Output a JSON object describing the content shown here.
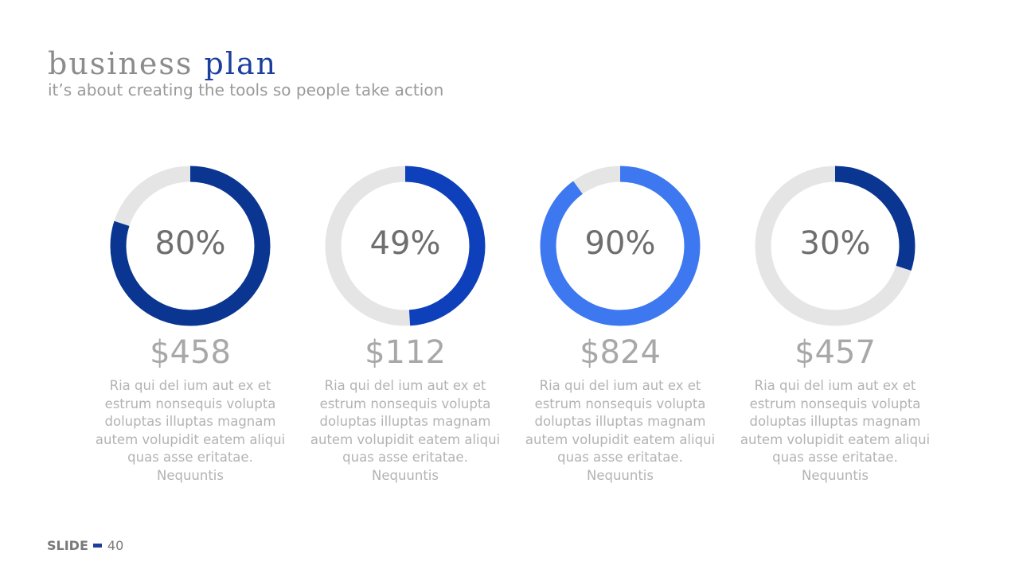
{
  "header": {
    "title_part1": "business",
    "title_part2": "plan",
    "subtitle": "it’s about creating the tools so people take action"
  },
  "colors": {
    "track": "#e5e5e5",
    "series": [
      "#0a3591",
      "#0f40bb",
      "#3d78f0",
      "#0a3591"
    ]
  },
  "chart_data": {
    "type": "pie",
    "donut": true,
    "items": [
      {
        "value": 80,
        "label": "80%",
        "amount": "$458",
        "description": "Ria qui del ium aut ex et estrum nonsequis volupta doluptas illuptas magnam autem volupidit eatem aliqui quas asse eritatae. Nequuntis"
      },
      {
        "value": 49,
        "label": "49%",
        "amount": "$112",
        "description": "Ria qui del ium aut ex et estrum nonsequis volupta doluptas illuptas magnam autem volupidit eatem aliqui quas asse eritatae. Nequuntis"
      },
      {
        "value": 90,
        "label": "90%",
        "amount": "$824",
        "description": "Ria qui del ium aut ex et estrum nonsequis volupta doluptas illuptas magnam autem volupidit eatem aliqui quas asse eritatae. Nequuntis"
      },
      {
        "value": 30,
        "label": "30%",
        "amount": "$457",
        "description": "Ria qui del ium aut ex et estrum nonsequis volupta doluptas illuptas magnam autem volupidit eatem aliqui quas asse eritatae. Nequuntis"
      }
    ]
  },
  "footer": {
    "label": "SLIDE",
    "page_number": "40"
  }
}
